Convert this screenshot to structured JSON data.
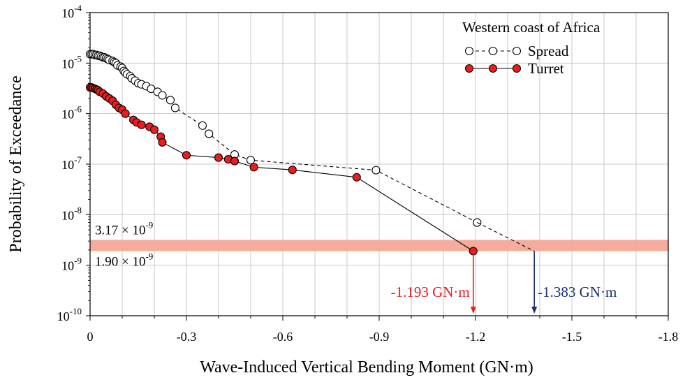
{
  "chart_data": {
    "type": "scatter",
    "title": "",
    "xlabel": "Wave-Induced Vertical Bending Moment (GN·m)",
    "ylabel": "Probability of Exceedance",
    "x_scale": "linear",
    "x_reversed": true,
    "xlim": [
      0,
      -1.8
    ],
    "y_scale": "log",
    "ylim": [
      1e-10,
      0.0001
    ],
    "x_ticks": [
      0,
      -0.3,
      -0.6,
      -0.9,
      -1.2,
      -1.5,
      -1.8
    ],
    "x_tick_labels": [
      "0",
      "-0.3",
      "-0.6",
      "-0.9",
      "-1.2",
      "-1.5",
      "-1.8"
    ],
    "y_ticks": [
      1e-10,
      1e-09,
      1e-08,
      1e-07,
      1e-06,
      1e-05,
      0.0001
    ],
    "y_tick_base": [
      "10",
      "10",
      "10",
      "10",
      "10",
      "10",
      "10"
    ],
    "y_tick_exp": [
      "-10",
      "-9",
      "-8",
      "-7",
      "-6",
      "-5",
      "-4"
    ],
    "grid": true,
    "legend": {
      "title": "Western coast of Africa",
      "placement": "top-right"
    },
    "series": [
      {
        "name": "Spread",
        "color": "#000000",
        "marker": "open-circle",
        "line": "dashed",
        "x": [
          0,
          -0.005,
          -0.01,
          -0.015,
          -0.02,
          -0.025,
          -0.03,
          -0.035,
          -0.04,
          -0.045,
          -0.05,
          -0.055,
          -0.06,
          -0.07,
          -0.075,
          -0.08,
          -0.085,
          -0.095,
          -0.1,
          -0.105,
          -0.11,
          -0.115,
          -0.125,
          -0.13,
          -0.14,
          -0.15,
          -0.16,
          -0.175,
          -0.19,
          -0.21,
          -0.225,
          -0.25,
          -0.265,
          -0.35,
          -0.37,
          -0.45,
          -0.5,
          -0.89,
          -1.205
        ],
        "y": [
          1.5e-05,
          1.5e-05,
          1.5e-05,
          1.45e-05,
          1.45e-05,
          1.4e-05,
          1.4e-05,
          1.35e-05,
          1.3e-05,
          1.3e-05,
          1.25e-05,
          1.2e-05,
          1.15e-05,
          1.1e-05,
          1.05e-05,
          1e-05,
          9e-06,
          8.5e-06,
          8e-06,
          7e-06,
          6.5e-06,
          6e-06,
          5.5e-06,
          5e-06,
          4.5e-06,
          4e-06,
          3.8e-06,
          3.5e-06,
          3.1e-06,
          2.7e-06,
          2.3e-06,
          1.85e-06,
          1.3e-06,
          5.8e-07,
          4e-07,
          1.55e-07,
          1.2e-07,
          7.6e-08,
          7e-09
        ]
      },
      {
        "name": "Turret",
        "color": "#ee1c1c",
        "marker": "filled-circle",
        "line": "solid",
        "x": [
          0,
          -0.005,
          -0.01,
          -0.015,
          -0.02,
          -0.025,
          -0.03,
          -0.04,
          -0.05,
          -0.06,
          -0.07,
          -0.08,
          -0.09,
          -0.1,
          -0.11,
          -0.135,
          -0.145,
          -0.16,
          -0.185,
          -0.2,
          -0.22,
          -0.225,
          -0.3,
          -0.4,
          -0.43,
          -0.45,
          -0.51,
          -0.63,
          -0.83,
          -1.193
        ],
        "y": [
          3.3e-06,
          3.3e-06,
          3.2e-06,
          3.1e-06,
          3e-06,
          2.9e-06,
          2.7e-06,
          2.5e-06,
          2.2e-06,
          2e-06,
          1.8e-06,
          1.5e-06,
          1.3e-06,
          1.2e-06,
          1e-06,
          7.5e-07,
          6.7e-07,
          6e-07,
          5.5e-07,
          4.8e-07,
          3.5e-07,
          2.7e-07,
          1.5e-07,
          1.35e-07,
          1.25e-07,
          1.15e-07,
          8.7e-08,
          7.7e-08,
          5.5e-08,
          1.9e-09
        ]
      }
    ],
    "extension_line": {
      "series": "Spread",
      "from": [
        -1.205,
        7e-09
      ],
      "to": [
        -1.383,
        1.9e-09
      ]
    },
    "band": {
      "y_low": 1.9e-09,
      "y_high": 3.17e-09,
      "color": "#f4a898",
      "label_high": "3.17 × 10",
      "label_high_exp": "-9",
      "label_low": "1.90 × 10",
      "label_low_exp": "-9"
    },
    "annotations": [
      {
        "text": "-1.193 GN·m",
        "x": -1.193,
        "color": "#ee1c1c",
        "side": "left"
      },
      {
        "text": "-1.383 GN·m",
        "x": -1.383,
        "color": "#1a3070",
        "side": "right"
      }
    ]
  }
}
